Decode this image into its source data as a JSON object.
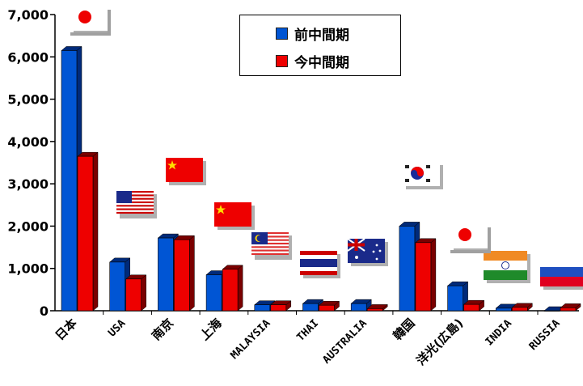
{
  "chart_data": {
    "type": "bar",
    "title": "",
    "xlabel": "",
    "ylabel": "",
    "ylim": [
      0,
      7000
    ],
    "yticks": [
      "0",
      "1,000",
      "2,000",
      "3,000",
      "4,000",
      "5,000",
      "6,000",
      "7,000"
    ],
    "categories": [
      "日本",
      "USA",
      "南京",
      "上海",
      "MALAYSIA",
      "THAI",
      "AUSTRALIA",
      "韓国",
      "洋光(広島)",
      "INDIA",
      "RUSSIA"
    ],
    "series": [
      {
        "name": "前中間期",
        "color": "#0055d4",
        "values": [
          6150,
          1150,
          1720,
          850,
          140,
          170,
          170,
          2000,
          590,
          60,
          0
        ]
      },
      {
        "name": "今中間期",
        "color": "#ee0000",
        "values": [
          3650,
          750,
          1680,
          980,
          140,
          130,
          50,
          1610,
          150,
          80,
          70
        ]
      }
    ],
    "grid": false,
    "legend_position": "top-center",
    "flags": [
      "japan-flag-icon",
      "usa-flag-icon",
      "china-flag-icon",
      "china-flag-icon",
      "malaysia-flag-icon",
      "thailand-flag-icon",
      "australia-flag-icon",
      "korea-flag-icon",
      "japan-flag-icon",
      "india-flag-icon",
      "russia-flag-icon"
    ]
  }
}
